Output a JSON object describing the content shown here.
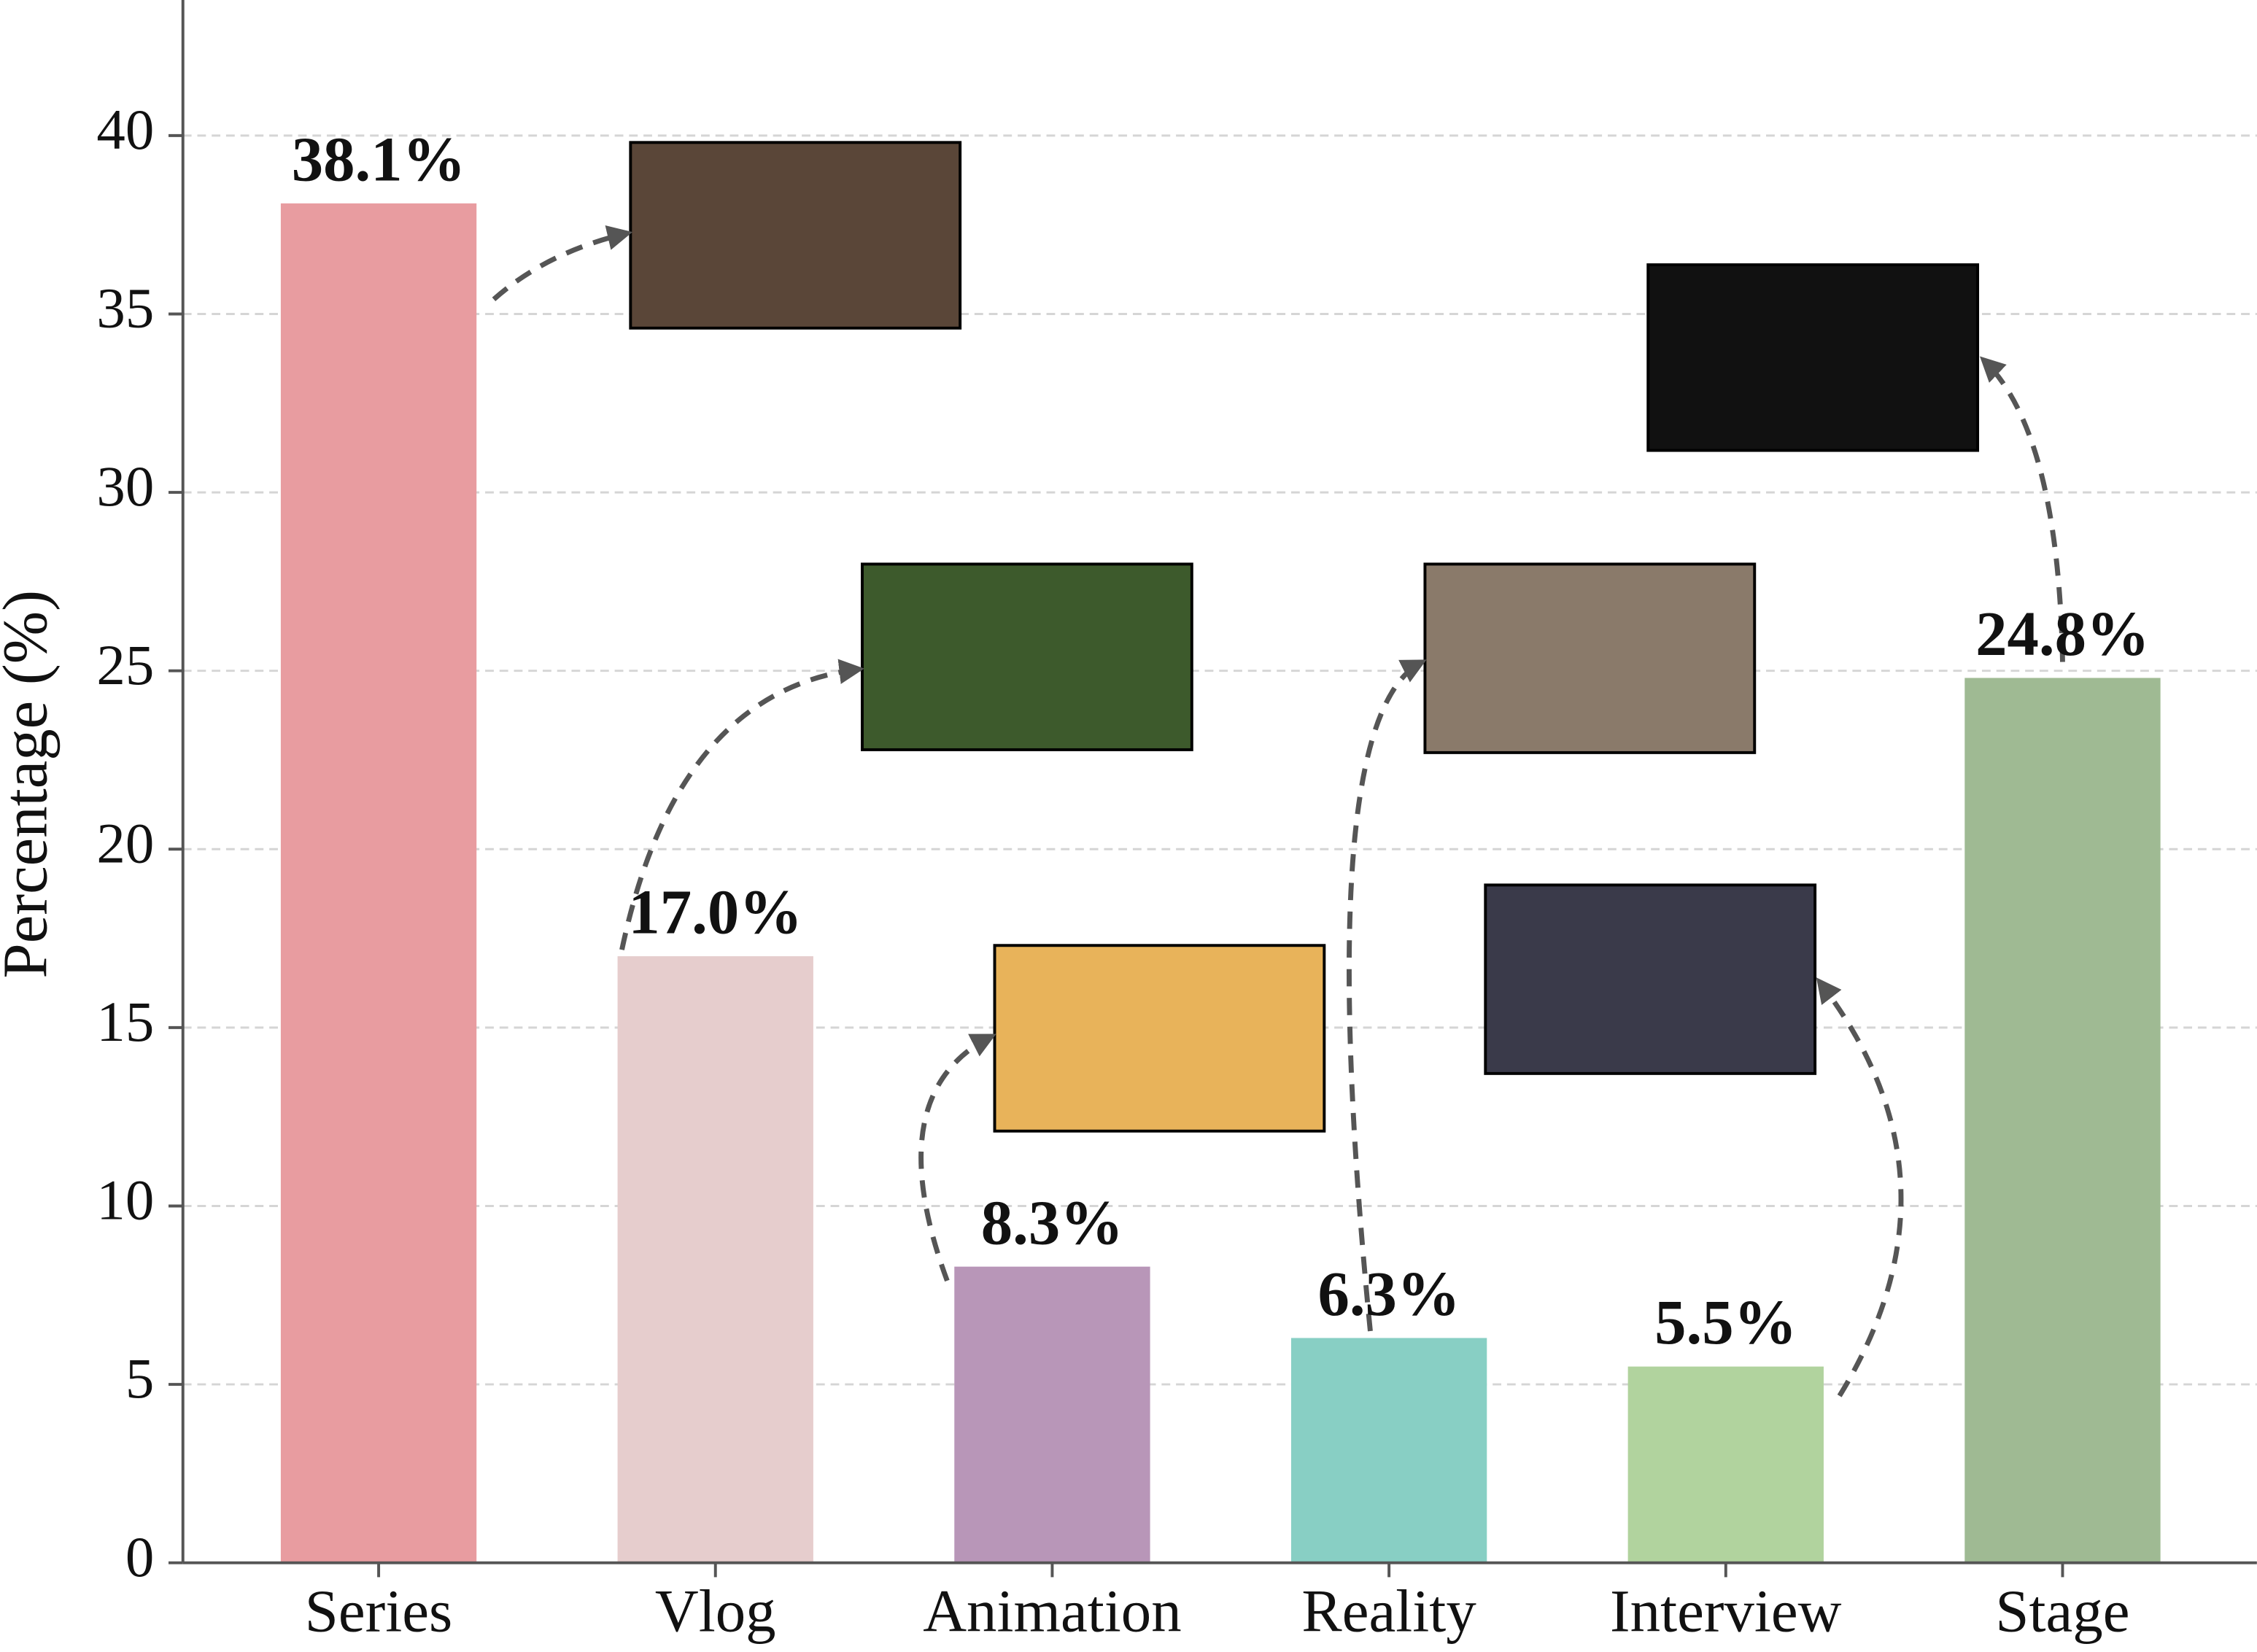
{
  "chart_data": {
    "type": "bar",
    "y_label": "Percentage (%)",
    "categories": [
      "Series",
      "Vlog",
      "Animation",
      "Reality",
      "Interview",
      "Stage"
    ],
    "values": [
      38.1,
      17.0,
      8.3,
      6.3,
      5.5,
      24.8
    ],
    "value_labels": [
      "38.1%",
      "17.0%",
      "8.3%",
      "6.3%",
      "5.5%",
      "24.8%"
    ],
    "colors": [
      "#e89ca0",
      "#e6cdcd",
      "#b896b8",
      "#88cfc4",
      "#b1d39e",
      "#9fba93"
    ],
    "ylim": [
      0,
      43.8
    ],
    "yticks": [
      0,
      5,
      10,
      15,
      20,
      25,
      30,
      35,
      40
    ],
    "grid": true
  }
}
